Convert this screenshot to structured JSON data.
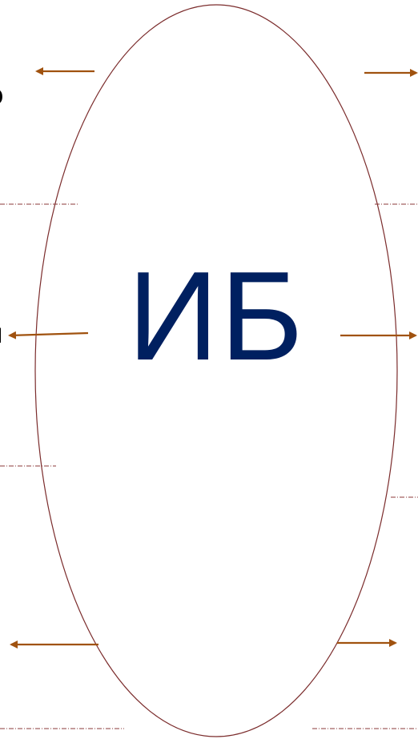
{
  "center_label": "ИБ",
  "edge_fragments": {
    "top_left": "o",
    "middle_left": "ч"
  },
  "colors": {
    "center_text": "#002060",
    "ellipse_stroke": "#7b2c2c",
    "arrow": "#a0520f",
    "dash_line": "#8b3a3a",
    "background": "#ffffff"
  }
}
